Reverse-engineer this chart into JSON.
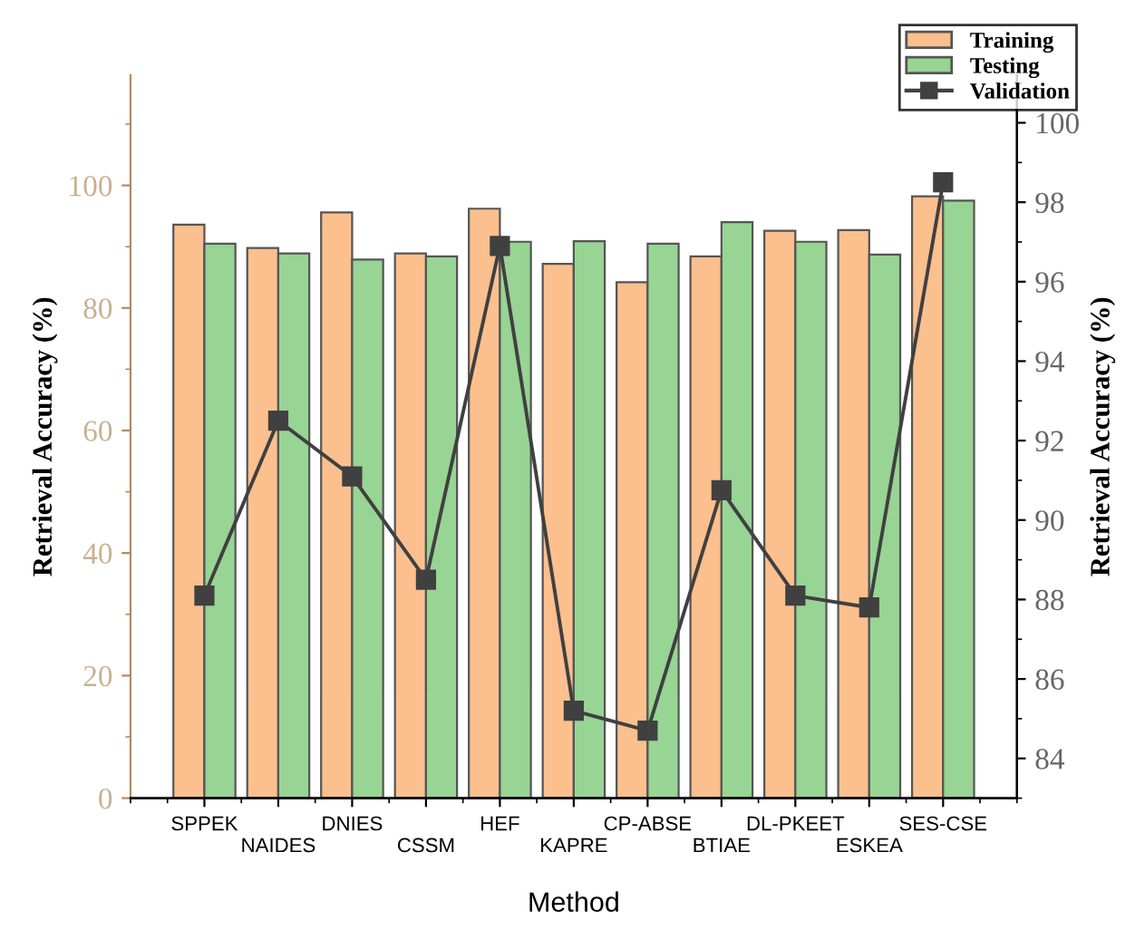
{
  "chart_data": {
    "type": "bar",
    "xlabel": "Method",
    "ylabel": "Retrieval Accuracy (%)",
    "y2label": "Retrieval Accuracy (%)",
    "categories": [
      "SPPEK",
      "NAIDES",
      "DNIES",
      "CSSM",
      "HEF",
      "KAPRE",
      "CP-ABSE",
      "BTIAE",
      "DL-PKEET",
      "ESKEA",
      "SES-CSE"
    ],
    "series": [
      {
        "name": "Training",
        "color": "#fbc08e",
        "values": [
          93.6,
          89.8,
          95.6,
          88.9,
          96.2,
          87.2,
          84.2,
          88.4,
          92.6,
          92.7,
          98.2
        ]
      },
      {
        "name": "Testing",
        "color": "#98d494",
        "values": [
          90.5,
          88.9,
          87.9,
          88.4,
          90.8,
          90.9,
          90.5,
          94.0,
          90.8,
          88.7,
          97.5
        ]
      },
      {
        "name": "Validation",
        "type": "line",
        "axis": "y2",
        "color": "#404040",
        "marker": "square",
        "values": [
          88.1,
          92.5,
          91.1,
          88.5,
          96.9,
          85.2,
          84.7,
          90.75,
          88.1,
          87.8,
          98.5
        ]
      }
    ],
    "ylim": [
      0,
      118
    ],
    "yticks": [
      0,
      20,
      40,
      60,
      80,
      100
    ],
    "y2lim": [
      83,
      101.2
    ],
    "y2ticks": [
      84,
      86,
      88,
      90,
      92,
      94,
      96,
      98,
      100
    ],
    "grid": false,
    "legend": "top right"
  }
}
